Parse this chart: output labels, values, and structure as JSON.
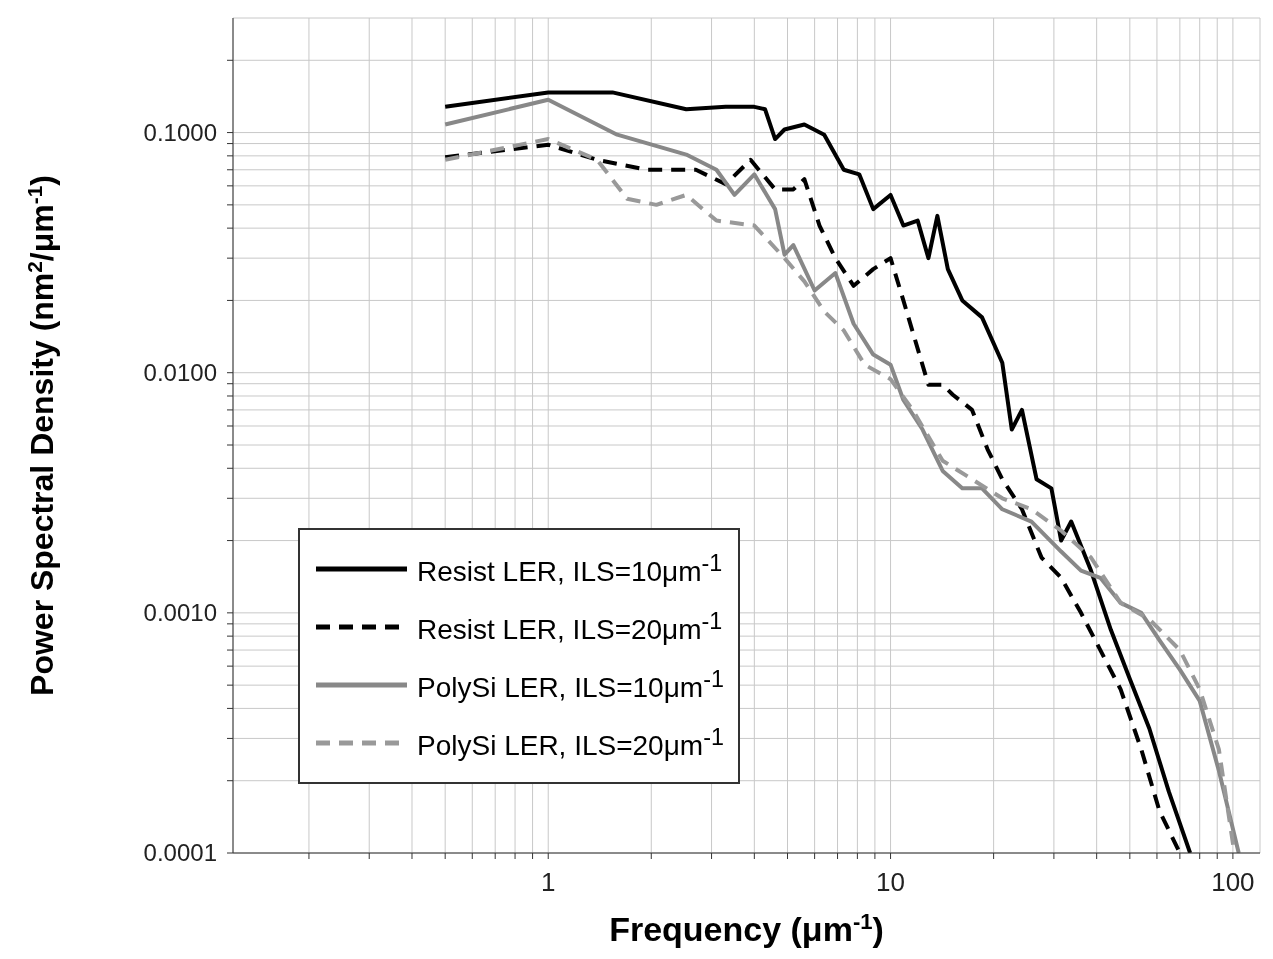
{
  "chart_data": {
    "type": "line",
    "xlabel": "Frequency (μm$^{-1}$)",
    "ylabel": "Power Spectral Density (nm$^{2}$/μm$^{-1}$)",
    "log": "xy",
    "grid": true,
    "legend": "bottom left",
    "marker": "none",
    "xlim": [
      0.12,
      120
    ],
    "xticks": [
      {
        "value": 0.2,
        "label": null
      },
      {
        "value": 0.3,
        "label": null
      },
      {
        "value": 0.4,
        "label": null
      },
      {
        "value": 0.5,
        "label": null
      },
      {
        "value": 0.6,
        "label": null
      },
      {
        "value": 0.7,
        "label": null
      },
      {
        "value": 0.8,
        "label": null
      },
      {
        "value": 0.9,
        "label": null
      },
      1,
      {
        "value": 2,
        "label": null
      },
      {
        "value": 3,
        "label": null
      },
      {
        "value": 4,
        "label": null
      },
      {
        "value": 5,
        "label": null
      },
      {
        "value": 6,
        "label": null
      },
      {
        "value": 7,
        "label": null
      },
      {
        "value": 8,
        "label": null
      },
      {
        "value": 9,
        "label": null
      },
      10,
      {
        "value": 20,
        "label": null
      },
      {
        "value": 30,
        "label": null
      },
      {
        "value": 40,
        "label": null
      },
      {
        "value": 50,
        "label": null
      },
      {
        "value": 60,
        "label": null
      },
      {
        "value": 70,
        "label": null
      },
      {
        "value": 80,
        "label": null
      },
      {
        "value": 90,
        "label": null
      },
      100
    ],
    "ylim": [
      0.0001,
      0.3
    ],
    "yticks": [
      {
        "value": 0.0001,
        "label": "0.0001"
      },
      {
        "value": 0.0002,
        "label": null
      },
      {
        "value": 0.0003,
        "label": null
      },
      {
        "value": 0.0004,
        "label": null
      },
      {
        "value": 0.0005,
        "label": null
      },
      {
        "value": 0.0006,
        "label": null
      },
      {
        "value": 0.0007,
        "label": null
      },
      {
        "value": 0.0008,
        "label": null
      },
      {
        "value": 0.0009,
        "label": null
      },
      {
        "value": 0.001,
        "label": "0.0010"
      },
      {
        "value": 0.002,
        "label": null
      },
      {
        "value": 0.003,
        "label": null
      },
      {
        "value": 0.004,
        "label": null
      },
      {
        "value": 0.005,
        "label": null
      },
      {
        "value": 0.006,
        "label": null
      },
      {
        "value": 0.007,
        "label": null
      },
      {
        "value": 0.008,
        "label": null
      },
      {
        "value": 0.009,
        "label": null
      },
      {
        "value": 0.01,
        "label": "0.0100"
      },
      {
        "value": 0.02,
        "label": null
      },
      {
        "value": 0.03,
        "label": null
      },
      {
        "value": 0.04,
        "label": null
      },
      {
        "value": 0.05,
        "label": null
      },
      {
        "value": 0.06,
        "label": null
      },
      {
        "value": 0.07,
        "label": null
      },
      {
        "value": 0.08,
        "label": null
      },
      {
        "value": 0.09,
        "label": null
      },
      {
        "value": 0.1,
        "label": "0.1000"
      },
      {
        "value": 0.2,
        "label": null
      }
    ],
    "series": [
      {
        "name": "Resist LER, ILS=10μm$^{-1}$",
        "color": "#000000",
        "line_style": "solid",
        "x": [
          0.5,
          1,
          1.54,
          2.53,
          3.3,
          4.0,
          4.3,
          4.6,
          4.9,
          5.6,
          6.4,
          7.3,
          8.1,
          8.9,
          10,
          10.9,
          12.0,
          12.9,
          13.7,
          14.7,
          16.2,
          18.5,
          21.2,
          22.6,
          24.2,
          26.7,
          29.5,
          31.5,
          33.7,
          38.5,
          44,
          50,
          57,
          65,
          75
        ],
        "values": [
          0.128,
          0.147,
          0.147,
          0.125,
          0.128,
          0.128,
          0.125,
          0.094,
          0.103,
          0.108,
          0.098,
          0.07,
          0.067,
          0.048,
          0.055,
          0.041,
          0.043,
          0.03,
          0.045,
          0.027,
          0.02,
          0.017,
          0.011,
          0.0058,
          0.007,
          0.0036,
          0.0033,
          0.002,
          0.0024,
          0.0015,
          0.00085,
          0.00053,
          0.00033,
          0.00018,
          0.0001
        ]
      },
      {
        "name": "Resist LER, ILS=20μm$^{-1}$",
        "color": "#000000",
        "line_style": "dashed",
        "x": [
          0.5,
          1,
          1.39,
          1.94,
          2.7,
          3.3,
          3.9,
          4.6,
          5.2,
          5.6,
          6.2,
          6.9,
          7.8,
          8.9,
          10,
          10.9,
          12.9,
          14.2,
          15.2,
          17.3,
          19.2,
          21.2,
          24.2,
          27.6,
          31.5,
          36,
          41,
          47,
          54,
          61,
          70
        ],
        "values": [
          0.079,
          0.089,
          0.077,
          0.07,
          0.07,
          0.061,
          0.077,
          0.058,
          0.058,
          0.064,
          0.041,
          0.03,
          0.023,
          0.027,
          0.03,
          0.02,
          0.0089,
          0.0089,
          0.0081,
          0.007,
          0.0048,
          0.0036,
          0.0027,
          0.0017,
          0.0014,
          0.001,
          0.0007,
          0.00048,
          0.00027,
          0.00015,
          0.0001
        ]
      },
      {
        "name": "PolySi LER, ILS=10μm$^{-1}$",
        "color": "#888888",
        "line_style": "solid",
        "x": [
          0.5,
          1,
          1.59,
          2.53,
          3.1,
          3.5,
          4.0,
          4.6,
          4.9,
          5.2,
          6.0,
          6.9,
          7.8,
          8.9,
          10,
          10.9,
          12.4,
          14.2,
          16.2,
          18.5,
          21.2,
          25.8,
          31.5,
          36,
          41,
          47,
          54,
          61,
          70,
          80,
          91,
          104
        ],
        "values": [
          0.108,
          0.137,
          0.098,
          0.081,
          0.07,
          0.055,
          0.067,
          0.048,
          0.031,
          0.034,
          0.022,
          0.026,
          0.016,
          0.0119,
          0.0108,
          0.0077,
          0.0058,
          0.0039,
          0.0033,
          0.0033,
          0.0027,
          0.0024,
          0.0018,
          0.0015,
          0.0014,
          0.0011,
          0.001,
          0.00077,
          0.00058,
          0.00043,
          0.00022,
          0.0001
        ]
      },
      {
        "name": "PolySi LER, ILS=20μm$^{-1}$",
        "color": "#999999",
        "line_style": "dashed",
        "x": [
          0.5,
          1,
          1.39,
          1.7,
          2.07,
          2.53,
          3.1,
          4.0,
          4.9,
          5.6,
          6.4,
          7.3,
          8.4,
          10,
          11.6,
          14.2,
          17.3,
          21.2,
          25.8,
          31.5,
          38.5,
          47,
          57,
          70,
          80,
          91,
          101
        ],
        "values": [
          0.077,
          0.094,
          0.077,
          0.053,
          0.05,
          0.055,
          0.043,
          0.041,
          0.03,
          0.024,
          0.018,
          0.015,
          0.0108,
          0.0094,
          0.007,
          0.0043,
          0.0036,
          0.003,
          0.0027,
          0.0022,
          0.0017,
          0.0011,
          0.00094,
          0.0007,
          0.00048,
          0.00027,
          0.0001
        ]
      }
    ]
  }
}
